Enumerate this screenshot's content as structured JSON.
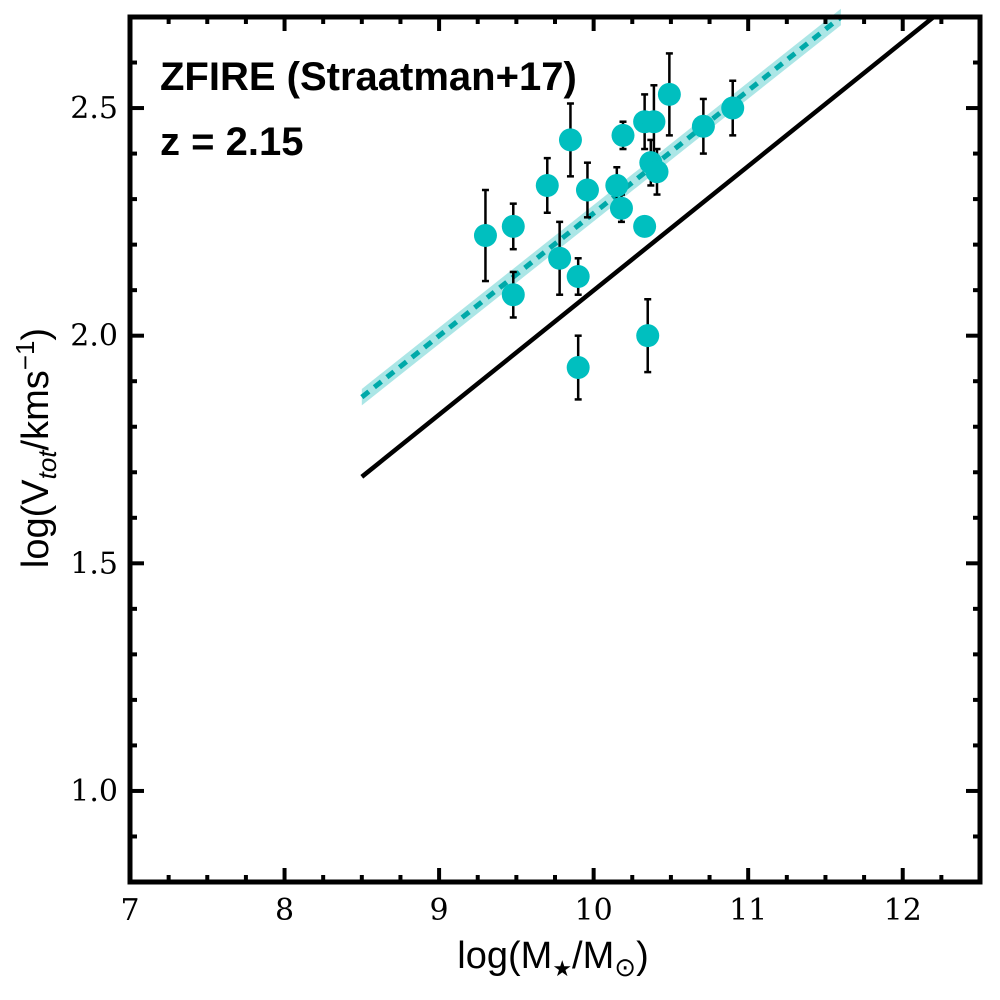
{
  "chart_data": {
    "type": "scatter",
    "title": "",
    "annotations": [
      "ZFIRE (Straatman+17)",
      "z = 2.15"
    ],
    "xlabel": {
      "main": "log(M",
      "sub1": "★",
      "mid": "/M",
      "sub2": "⊙",
      "end": ")"
    },
    "ylabel": {
      "main": "log(V",
      "sub": "tot",
      "mid": "/kms",
      "sup": "−1",
      "end": ")"
    },
    "xlim": [
      7,
      12.5
    ],
    "ylim": [
      0.8,
      2.7
    ],
    "x_ticks": [
      7,
      8,
      9,
      10,
      11,
      12
    ],
    "x_tick_labels": [
      "7",
      "8",
      "9",
      "10",
      "11",
      "12"
    ],
    "y_ticks": [
      1.0,
      1.5,
      2.0,
      2.5
    ],
    "y_tick_labels": [
      "1.0",
      "1.5",
      "2.0",
      "2.5"
    ],
    "x_minor_step": 0.25,
    "y_minor_step": 0.1,
    "grid": false,
    "points": [
      {
        "x": 9.3,
        "y": 2.22,
        "err": 0.1
      },
      {
        "x": 9.48,
        "y": 2.24,
        "err": 0.05
      },
      {
        "x": 9.48,
        "y": 2.09,
        "err": 0.05
      },
      {
        "x": 9.7,
        "y": 2.33,
        "err": 0.06
      },
      {
        "x": 9.78,
        "y": 2.17,
        "err": 0.08
      },
      {
        "x": 9.85,
        "y": 2.43,
        "err": 0.08
      },
      {
        "x": 9.9,
        "y": 2.13,
        "err": 0.04
      },
      {
        "x": 9.9,
        "y": 1.93,
        "err": 0.07
      },
      {
        "x": 9.96,
        "y": 2.32,
        "err": 0.06
      },
      {
        "x": 10.15,
        "y": 2.33,
        "err": 0.04
      },
      {
        "x": 10.18,
        "y": 2.28,
        "err": 0.03
      },
      {
        "x": 10.19,
        "y": 2.44,
        "err": 0.03
      },
      {
        "x": 10.33,
        "y": 2.24,
        "err": 0.0
      },
      {
        "x": 10.33,
        "y": 2.47,
        "err": 0.06
      },
      {
        "x": 10.35,
        "y": 2.0,
        "err": 0.08
      },
      {
        "x": 10.37,
        "y": 2.38,
        "err": 0.05
      },
      {
        "x": 10.39,
        "y": 2.47,
        "err": 0.08
      },
      {
        "x": 10.41,
        "y": 2.36,
        "err": 0.05
      },
      {
        "x": 10.49,
        "y": 2.53,
        "err": 0.09
      },
      {
        "x": 10.71,
        "y": 2.46,
        "err": 0.06
      },
      {
        "x": 10.9,
        "y": 2.5,
        "err": 0.06
      }
    ],
    "series": [
      {
        "name": "reference relation",
        "style": "solid",
        "x": [
          8.5,
          12.2
        ],
        "y": [
          1.69,
          2.7
        ]
      },
      {
        "name": "ZFIRE fit",
        "style": "dotted",
        "x": [
          8.5,
          11.6
        ],
        "y": [
          1.865,
          2.7
        ],
        "band_halfwidth": 0.018
      }
    ],
    "colors": {
      "points": "#00bfbf",
      "fit": "#00a9a9",
      "band": "#8fdede",
      "axis": "#000000",
      "reference": "#000000"
    }
  }
}
